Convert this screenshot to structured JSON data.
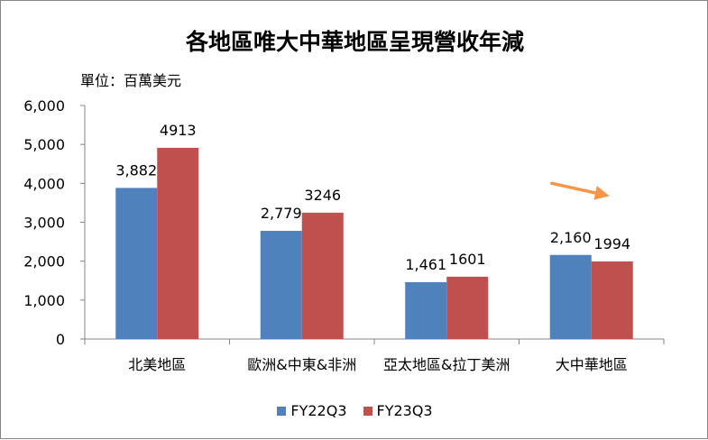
{
  "chart_data": {
    "type": "bar",
    "title": "各地區唯大中華地區呈現營收年減",
    "unit_label": "單位：百萬美元",
    "categories": [
      "北美地區",
      "歐洲&中東&非洲",
      "亞太地區&拉丁美洲",
      "大中華地區"
    ],
    "series": [
      {
        "name": "FY22Q3",
        "values": [
          3882,
          2779,
          1461,
          2160
        ],
        "labels": [
          "3,882",
          "2,779",
          "1,461",
          "2,160"
        ],
        "color": "#4f81bd"
      },
      {
        "name": "FY23Q3",
        "values": [
          4913,
          3246,
          1601,
          1994
        ],
        "labels": [
          "4913",
          "3246",
          "1601",
          "1994"
        ],
        "color": "#c0504d"
      }
    ],
    "yticks": [
      "0",
      "1,000",
      "2,000",
      "3,000",
      "4,000",
      "5,000",
      "6,000"
    ],
    "ylim": [
      0,
      6000
    ],
    "grid": false,
    "legend_position": "bottom",
    "annotation": {
      "type": "arrow",
      "direction": "down-right",
      "near_category": "大中華地區",
      "color": "#f79646"
    }
  }
}
